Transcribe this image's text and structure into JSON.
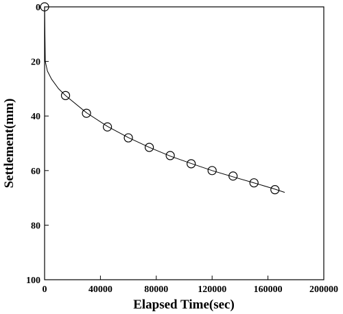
{
  "chart_data": {
    "type": "scatter",
    "xlabel": "Elapsed Time(sec)",
    "ylabel": "Settlement(mm)",
    "xlim": [
      0,
      200000
    ],
    "xticks": [
      0,
      40000,
      80000,
      120000,
      160000,
      200000
    ],
    "ylim": [
      0,
      100
    ],
    "yticks": [
      0,
      20,
      40,
      60,
      80,
      100
    ],
    "y_inverted": true,
    "series": [
      {
        "type": "scatter",
        "color": "#000000",
        "x": [
          0,
          15000,
          30000,
          45000,
          60000,
          75000,
          90000,
          105000,
          120000,
          135000,
          150000,
          165000
        ],
        "values": [
          0,
          32.5,
          39,
          44,
          48,
          51.5,
          54.5,
          57.5,
          60,
          62,
          64.5,
          67
        ]
      },
      {
        "type": "line",
        "color": "#000000",
        "x": [
          0,
          500,
          2000,
          5000,
          10000,
          15000,
          30000,
          45000,
          60000,
          75000,
          90000,
          105000,
          120000,
          135000,
          150000,
          165000,
          172000
        ],
        "values": [
          0,
          20,
          23.5,
          26.5,
          30,
          32.5,
          38.8,
          43.8,
          47.9,
          51.5,
          54.7,
          57.4,
          60,
          62.3,
          64.5,
          66.8,
          68
        ]
      }
    ]
  }
}
